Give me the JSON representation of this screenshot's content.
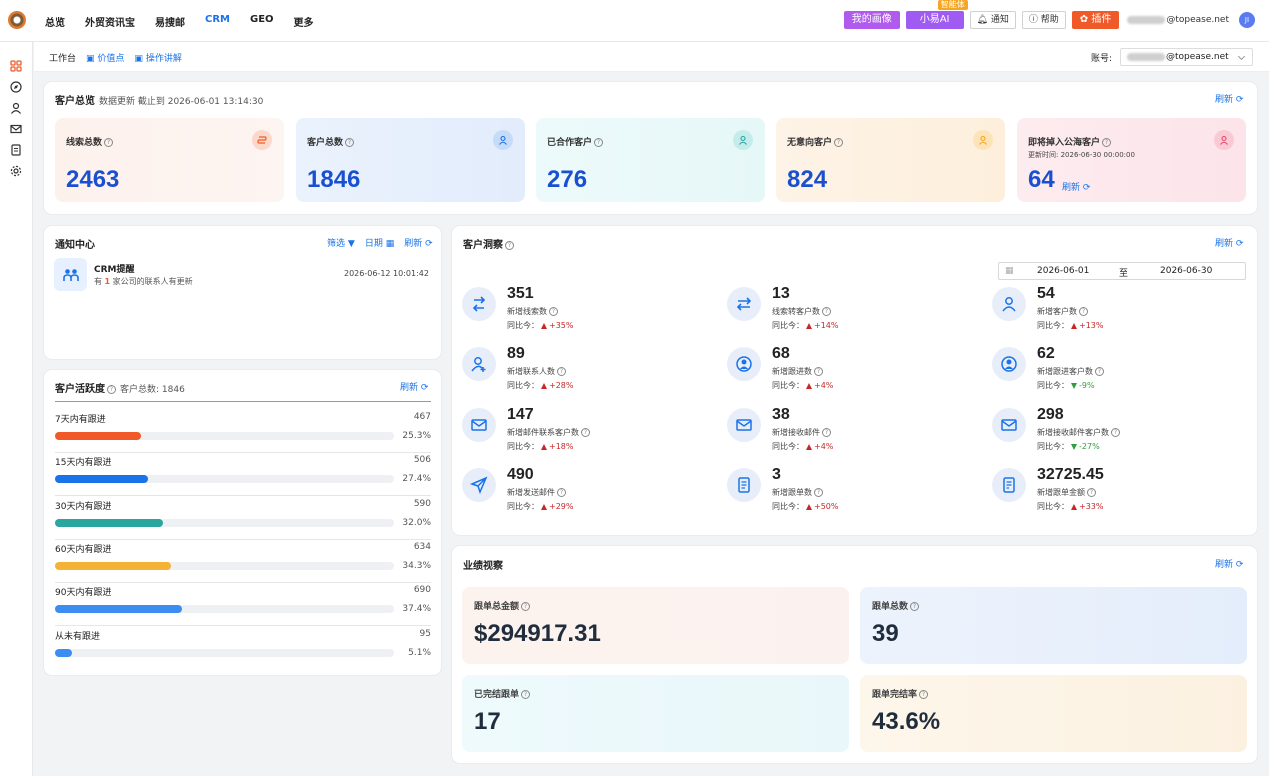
{
  "nav": {
    "items": [
      "总览",
      "外贸资讯宝",
      "易搜邮",
      "CRM",
      "GEO",
      "更多"
    ],
    "active": 3
  },
  "topbar": {
    "my_profile": "我的画像",
    "ai_label": "小易AI",
    "ai_tag": "智能体",
    "notify": "通知",
    "help": "帮助",
    "plugin": "插件",
    "email_suffix": "@topease.net",
    "avatar": "JI"
  },
  "subbar": {
    "workbench": "工作台",
    "value_points": "价值点",
    "tutorial": "操作讲解",
    "account_label": "账号:",
    "account_suffix": "@topease.net"
  },
  "overview": {
    "title": "客户总览",
    "update_text": "数据更新 截止到 2026-06-01 13:14:30",
    "refresh": "刷新",
    "cards": [
      {
        "label": "线索总数",
        "value": "2463",
        "color": "#f05a28"
      },
      {
        "label": "客户总数",
        "value": "1846",
        "color": "#1a73e8"
      },
      {
        "label": "已合作客户",
        "value": "276",
        "color": "#2aa5a0"
      },
      {
        "label": "无意向客户",
        "value": "824",
        "color": "#f5a623"
      },
      {
        "label": "即将掉入公海客户",
        "value": "64",
        "sub": "更新时间: 2026-06-30 00:00:00",
        "refresh": "刷新",
        "color": "#e84a6f"
      }
    ]
  },
  "notify_center": {
    "title": "通知中心",
    "filter": "筛选",
    "date": "日期",
    "refresh": "刷新",
    "item": {
      "title": "CRM提醒",
      "desc_pre": "有 ",
      "desc_num": "1",
      "desc_post": " 家公司的联系人有更新",
      "time": "2026-06-12 10:01:42"
    }
  },
  "activity": {
    "title": "客户活跃度",
    "total": "客户总数: 1846",
    "refresh": "刷新",
    "rows": [
      {
        "label": "7天内有跟进",
        "count": "467",
        "pct": "25.3%",
        "fill": 25.3,
        "color": "#f05a28"
      },
      {
        "label": "15天内有跟进",
        "count": "506",
        "pct": "27.4%",
        "fill": 27.4,
        "color": "#1a73e8"
      },
      {
        "label": "30天内有跟进",
        "count": "590",
        "pct": "32.0%",
        "fill": 32.0,
        "color": "#2aa5a0"
      },
      {
        "label": "60天内有跟进",
        "count": "634",
        "pct": "34.3%",
        "fill": 34.3,
        "color": "#f5b335"
      },
      {
        "label": "90天内有跟进",
        "count": "690",
        "pct": "37.4%",
        "fill": 37.4,
        "color": "#3b8ef0"
      },
      {
        "label": "从未有跟进",
        "count": "95",
        "pct": "5.1%",
        "fill": 5.1,
        "color": "#3b8ef0"
      }
    ]
  },
  "insight": {
    "title": "客户洞察",
    "refresh": "刷新",
    "date_from": "2026-06-01",
    "date_sep": "至",
    "date_to": "2026-06-30",
    "yoy_label": "同比今：",
    "items": [
      {
        "value": "351",
        "label": "新增线索数",
        "yoy": "+35%",
        "dir": "up",
        "icon": "convert-icon"
      },
      {
        "value": "13",
        "label": "线索转客户数",
        "yoy": "+14%",
        "dir": "up",
        "icon": "transfer-icon"
      },
      {
        "value": "54",
        "label": "新增客户数",
        "yoy": "+13%",
        "dir": "up",
        "icon": "user-icon"
      },
      {
        "value": "89",
        "label": "新增联系人数",
        "yoy": "+28%",
        "dir": "up",
        "icon": "add-contact-icon"
      },
      {
        "value": "68",
        "label": "新增跟进数",
        "yoy": "+4%",
        "dir": "up",
        "icon": "follow-icon"
      },
      {
        "value": "62",
        "label": "新增跟进客户数",
        "yoy": "-9%",
        "dir": "down",
        "icon": "follow-customer-icon"
      },
      {
        "value": "147",
        "label": "新增邮件联系客户数",
        "yoy": "+18%",
        "dir": "up",
        "icon": "mail-icon"
      },
      {
        "value": "38",
        "label": "新增接收邮件",
        "yoy": "+4%",
        "dir": "up",
        "icon": "mail-in-icon"
      },
      {
        "value": "298",
        "label": "新增接收邮件客户数",
        "yoy": "-27%",
        "dir": "down",
        "icon": "mail-customer-icon"
      },
      {
        "value": "490",
        "label": "新增发送邮件",
        "yoy": "+29%",
        "dir": "up",
        "icon": "send-icon"
      },
      {
        "value": "3",
        "label": "新增跟单数",
        "yoy": "+50%",
        "dir": "up",
        "icon": "order-icon"
      },
      {
        "value": "32725.45",
        "label": "新增跟单金额",
        "yoy": "+33%",
        "dir": "up",
        "icon": "order-amount-icon"
      }
    ]
  },
  "performance": {
    "title": "业绩视察",
    "refresh": "刷新",
    "items": [
      {
        "label": "跟单总金额",
        "value": "$294917.31"
      },
      {
        "label": "跟单总数",
        "value": "39"
      },
      {
        "label": "已完结跟单",
        "value": "17"
      },
      {
        "label": "跟单完结率",
        "value": "43.6%"
      }
    ]
  }
}
